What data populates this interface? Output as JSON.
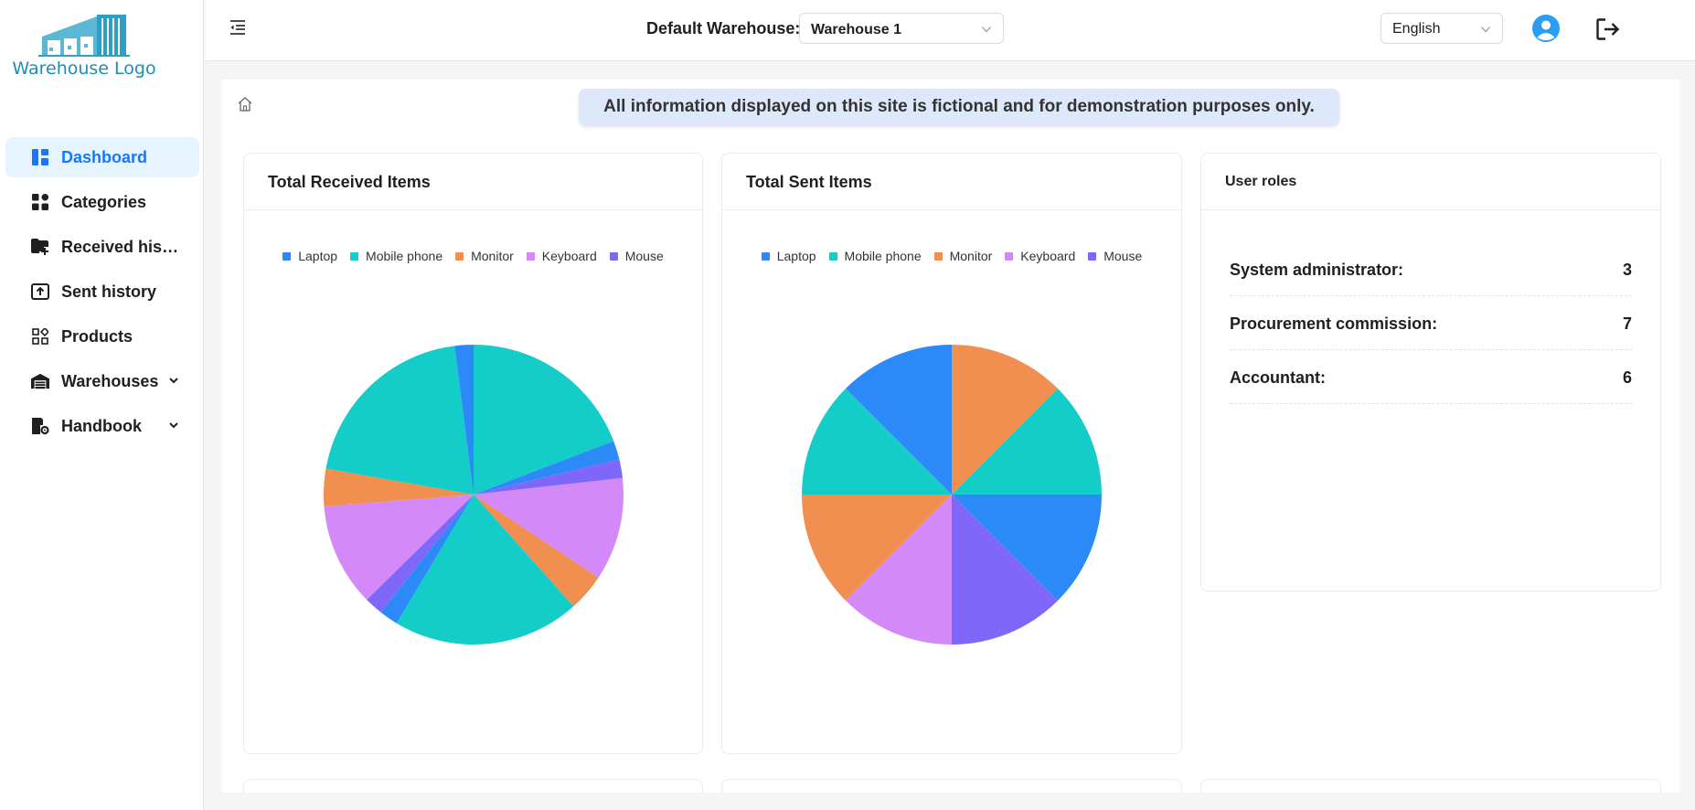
{
  "brand": {
    "logo_text": "Warehouse Logo"
  },
  "sidebar": {
    "items": [
      {
        "label": "Dashboard",
        "icon": "dashboard-icon",
        "active": true
      },
      {
        "label": "Categories",
        "icon": "categories-icon"
      },
      {
        "label": "Received history",
        "icon": "received-folder-icon"
      },
      {
        "label": "Sent history",
        "icon": "sent-box-icon"
      },
      {
        "label": "Products",
        "icon": "products-icon"
      },
      {
        "label": "Warehouses",
        "icon": "warehouse-icon",
        "expandable": true
      },
      {
        "label": "Handbook",
        "icon": "handbook-icon",
        "expandable": true
      }
    ]
  },
  "header": {
    "default_warehouse_label": "Default Warehouse:",
    "warehouse_value": "Warehouse 1",
    "language_value": "English"
  },
  "notice": "All information displayed on this site is fictional and for demonstration purposes only.",
  "colors": {
    "accent": "#1677ff",
    "laptop": "#2b8af7",
    "mobile_phone": "#14cdc8",
    "monitor": "#f08f50",
    "keyboard": "#d38af8",
    "mouse": "#7f67f9"
  },
  "legend": [
    "Laptop",
    "Mobile phone",
    "Monitor",
    "Keyboard",
    "Mouse"
  ],
  "chart_data": [
    {
      "type": "pie",
      "title": "Total Received Items",
      "categories": [
        "Laptop",
        "Mobile phone",
        "Monitor",
        "Keyboard",
        "Mouse"
      ],
      "slices": [
        {
          "category": "Mobile phone",
          "value": 19
        },
        {
          "category": "Laptop",
          "value": 2
        },
        {
          "category": "Mouse",
          "value": 2
        },
        {
          "category": "Keyboard",
          "value": 11
        },
        {
          "category": "Monitor",
          "value": 4
        },
        {
          "category": "Mobile phone",
          "value": 20
        },
        {
          "category": "Laptop",
          "value": 2
        },
        {
          "category": "Mouse",
          "value": 2
        },
        {
          "category": "Keyboard",
          "value": 11
        },
        {
          "category": "Monitor",
          "value": 4
        },
        {
          "category": "Mobile phone",
          "value": 20
        },
        {
          "category": "Laptop",
          "value": 2
        }
      ]
    },
    {
      "type": "pie",
      "title": "Total Sent Items",
      "categories": [
        "Laptop",
        "Mobile phone",
        "Monitor",
        "Keyboard",
        "Mouse"
      ],
      "slices": [
        {
          "category": "Monitor",
          "value": 1
        },
        {
          "category": "Mobile phone",
          "value": 1
        },
        {
          "category": "Laptop",
          "value": 1
        },
        {
          "category": "Mouse",
          "value": 1
        },
        {
          "category": "Keyboard",
          "value": 1
        },
        {
          "category": "Monitor",
          "value": 1
        },
        {
          "category": "Mobile phone",
          "value": 1
        },
        {
          "category": "Laptop",
          "value": 1
        }
      ]
    }
  ],
  "user_roles": {
    "title": "User roles",
    "items": [
      {
        "label": "System administrator:",
        "value": "3"
      },
      {
        "label": "Procurement commission:",
        "value": "7"
      },
      {
        "label": "Accountant:",
        "value": "6"
      }
    ]
  }
}
